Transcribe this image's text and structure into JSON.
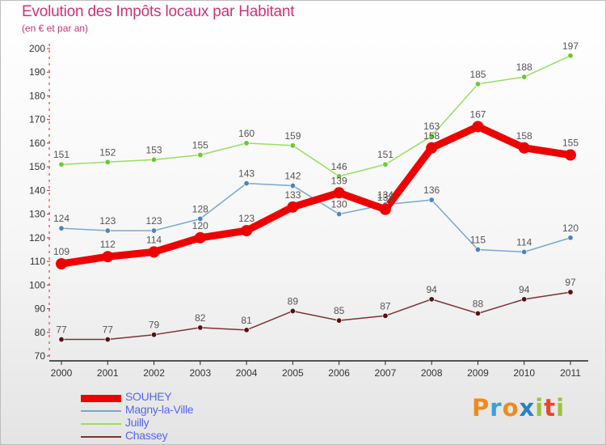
{
  "title": "Evolution des Impôts locaux par Habitant",
  "subtitle": "(en € et par an)",
  "logo": {
    "letters": [
      "P",
      "r",
      "o",
      "x",
      "i",
      "t",
      "i"
    ],
    "colors": [
      "#f08a1c",
      "#3aa0d8",
      "#f08a1c",
      "#2a7fc8",
      "#9ac33c",
      "#e8462c",
      "#9ac33c"
    ]
  },
  "chart_data": {
    "type": "line",
    "categories": [
      "2000",
      "2001",
      "2002",
      "2003",
      "2004",
      "2005",
      "2006",
      "2007",
      "2008",
      "2009",
      "2010",
      "2011"
    ],
    "ylim": [
      70,
      200
    ],
    "yticks": [
      70,
      80,
      90,
      100,
      110,
      120,
      130,
      140,
      150,
      160,
      170,
      180,
      190,
      200
    ],
    "grid": false,
    "legend_position": "bottom-left",
    "series": [
      {
        "name": "SOUHEY",
        "color": "#ee0000",
        "width": 9,
        "marker": 7,
        "marker_color": "#ee0000",
        "values": [
          109,
          112,
          114,
          120,
          123,
          133,
          139,
          132,
          158,
          167,
          158,
          155
        ]
      },
      {
        "name": "Magny-la-Ville",
        "color": "#7aa7cf",
        "width": 1.5,
        "marker": 3.2,
        "marker_color": "#4a87c0",
        "values": [
          124,
          123,
          123,
          128,
          143,
          142,
          130,
          134,
          136,
          115,
          114,
          120
        ]
      },
      {
        "name": "Juilly",
        "color": "#99dd66",
        "width": 1.5,
        "marker": 3.2,
        "marker_color": "#6cc832",
        "values": [
          151,
          152,
          153,
          155,
          160,
          159,
          146,
          151,
          163,
          185,
          188,
          197
        ]
      },
      {
        "name": "Chassey",
        "color": "#7a3333",
        "width": 1.5,
        "marker": 3.2,
        "marker_color": "#5a1010",
        "values": [
          77,
          77,
          79,
          82,
          81,
          89,
          85,
          87,
          94,
          88,
          94,
          97
        ]
      }
    ]
  }
}
